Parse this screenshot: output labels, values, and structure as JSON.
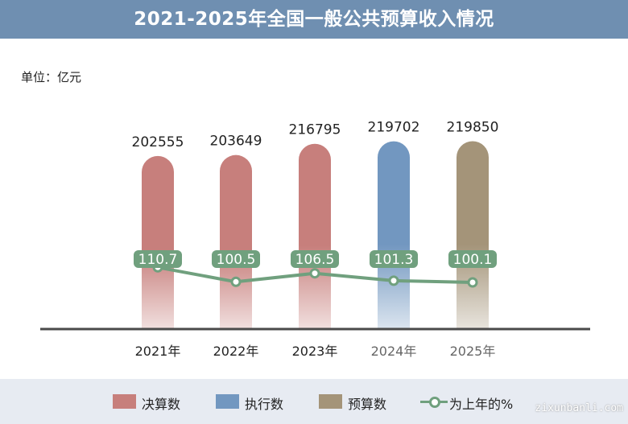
{
  "title": "2021-2025年全国一般公共预算收入情况",
  "unit_label": "单位：亿元",
  "legend": [
    {
      "label": "决算数",
      "color": "#c77f7c",
      "kind": "bar"
    },
    {
      "label": "执行数",
      "color": "#7297c0",
      "kind": "bar"
    },
    {
      "label": "预算数",
      "color": "#a49479",
      "kind": "bar"
    },
    {
      "label": "为上年的%",
      "color": "#70a07e",
      "kind": "line"
    }
  ],
  "watermark": "zixunbanli.com",
  "chart_data": {
    "type": "bar",
    "categories": [
      "2021年",
      "2022年",
      "2023年",
      "2024年",
      "2025年"
    ],
    "series": [
      {
        "name": "决算数",
        "values": [
          202555,
          203649,
          216795,
          null,
          null
        ],
        "color": "#c77f7c"
      },
      {
        "name": "执行数",
        "values": [
          null,
          null,
          null,
          219702,
          null
        ],
        "color": "#7297c0"
      },
      {
        "name": "预算数",
        "values": [
          null,
          null,
          null,
          null,
          219850
        ],
        "color": "#a49479"
      },
      {
        "name": "为上年的%",
        "type": "line",
        "values": [
          110.7,
          100.5,
          106.5,
          101.3,
          100.1
        ],
        "color": "#70a07e"
      }
    ],
    "bar_labels": [
      "202555",
      "203649",
      "216795",
      "219702",
      "219850"
    ],
    "line_labels": [
      "110.7",
      "100.5",
      "106.5",
      "101.3",
      "100.1"
    ],
    "tick_label_colors": [
      "#222222",
      "#222222",
      "#222222",
      "#666666",
      "#666666"
    ],
    "bar_ylim": [
      0,
      225000
    ],
    "line_ylim": [
      95,
      112
    ],
    "grid": false
  }
}
